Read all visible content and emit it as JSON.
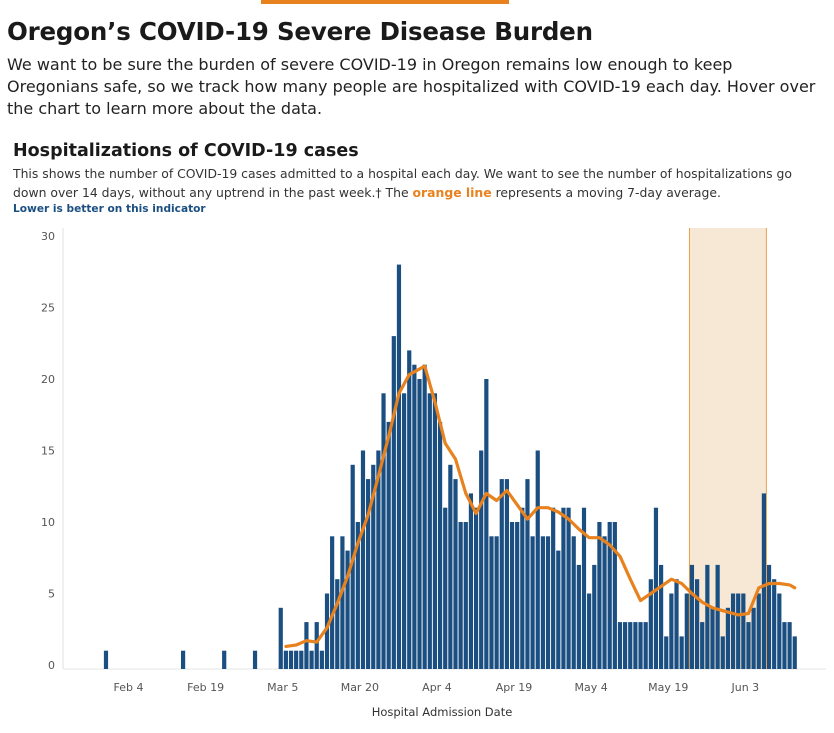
{
  "page": {
    "title": "Oregon’s COVID-19 Severe Disease Burden",
    "intro": "We want to be sure the burden of severe COVID-19 in Oregon remains low enough to keep Oregonians safe, so we track how many people are hospitalized with COVID-19 each day. Hover over the chart to learn more about the data."
  },
  "chart_header": {
    "title": "Hospitalizations of COVID-19 cases",
    "desc_part1": "This shows the number of COVID-19 cases admitted to a hospital each day. We want to see the number of hospitalizations go down over 14 days, without any uptrend in the past week.† The ",
    "desc_highlight": "orange line",
    "desc_part2": " represents a moving 7-day average.",
    "indicator": "Lower is better on this indicator"
  },
  "colors": {
    "bar": "#1b4f82",
    "line": "#e8821e",
    "shade": "#f6e8d5",
    "shade_border": "#e8a04b",
    "topbar": "#e8821e"
  },
  "chart_data": {
    "type": "bar",
    "xlabel": "Hospital Admission Date",
    "ylabel": "",
    "ylim": [
      0,
      30
    ],
    "yticks": [
      0,
      5,
      10,
      15,
      20,
      25,
      30
    ],
    "x_start": "2020-01-24",
    "x_ticks": [
      {
        "date": "2020-02-04",
        "label": "Feb 4"
      },
      {
        "date": "2020-02-19",
        "label": "Feb 19"
      },
      {
        "date": "2020-03-05",
        "label": "Mar 5"
      },
      {
        "date": "2020-03-20",
        "label": "Mar 20"
      },
      {
        "date": "2020-04-04",
        "label": "Apr 4"
      },
      {
        "date": "2020-04-19",
        "label": "Apr 19"
      },
      {
        "date": "2020-05-04",
        "label": "May 4"
      },
      {
        "date": "2020-05-19",
        "label": "May 19"
      },
      {
        "date": "2020-06-03",
        "label": "Jun 3"
      }
    ],
    "highlight_range": [
      "2020-05-24",
      "2020-06-06"
    ],
    "series": [
      {
        "kind": "bar",
        "points": [
          [
            "2020-01-31",
            1
          ],
          [
            "2020-02-15",
            1
          ],
          [
            "2020-02-23",
            1
          ],
          [
            "2020-02-29",
            1
          ],
          [
            "2020-03-05",
            4
          ],
          [
            "2020-03-06",
            1
          ],
          [
            "2020-03-07",
            1
          ],
          [
            "2020-03-08",
            1
          ],
          [
            "2020-03-09",
            1
          ],
          [
            "2020-03-10",
            3
          ],
          [
            "2020-03-11",
            1
          ],
          [
            "2020-03-12",
            3
          ],
          [
            "2020-03-13",
            1
          ],
          [
            "2020-03-14",
            5
          ],
          [
            "2020-03-15",
            9
          ],
          [
            "2020-03-16",
            6
          ],
          [
            "2020-03-17",
            9
          ],
          [
            "2020-03-18",
            8
          ],
          [
            "2020-03-19",
            14
          ],
          [
            "2020-03-20",
            10
          ],
          [
            "2020-03-21",
            15
          ],
          [
            "2020-03-22",
            13
          ],
          [
            "2020-03-23",
            14
          ],
          [
            "2020-03-24",
            15
          ],
          [
            "2020-03-25",
            19
          ],
          [
            "2020-03-26",
            17
          ],
          [
            "2020-03-27",
            23
          ],
          [
            "2020-03-28",
            28
          ],
          [
            "2020-03-29",
            19
          ],
          [
            "2020-03-30",
            22
          ],
          [
            "2020-03-31",
            21
          ],
          [
            "2020-04-01",
            20
          ],
          [
            "2020-04-02",
            21
          ],
          [
            "2020-04-03",
            19
          ],
          [
            "2020-04-04",
            19
          ],
          [
            "2020-04-05",
            17
          ],
          [
            "2020-04-06",
            11
          ],
          [
            "2020-04-07",
            14
          ],
          [
            "2020-04-08",
            13
          ],
          [
            "2020-04-09",
            10
          ],
          [
            "2020-04-10",
            10
          ],
          [
            "2020-04-11",
            12
          ],
          [
            "2020-04-12",
            11
          ],
          [
            "2020-04-13",
            15
          ],
          [
            "2020-04-14",
            20
          ],
          [
            "2020-04-15",
            9
          ],
          [
            "2020-04-16",
            9
          ],
          [
            "2020-04-17",
            13
          ],
          [
            "2020-04-18",
            13
          ],
          [
            "2020-04-19",
            10
          ],
          [
            "2020-04-20",
            10
          ],
          [
            "2020-04-21",
            11
          ],
          [
            "2020-04-22",
            13
          ],
          [
            "2020-04-23",
            9
          ],
          [
            "2020-04-24",
            15
          ],
          [
            "2020-04-25",
            9
          ],
          [
            "2020-04-26",
            9
          ],
          [
            "2020-04-27",
            11
          ],
          [
            "2020-04-28",
            8
          ],
          [
            "2020-04-29",
            11
          ],
          [
            "2020-04-30",
            11
          ],
          [
            "2020-05-01",
            9
          ],
          [
            "2020-05-02",
            7
          ],
          [
            "2020-05-03",
            11
          ],
          [
            "2020-05-04",
            5
          ],
          [
            "2020-05-05",
            7
          ],
          [
            "2020-05-06",
            10
          ],
          [
            "2020-05-07",
            9
          ],
          [
            "2020-05-08",
            10
          ],
          [
            "2020-05-09",
            10
          ],
          [
            "2020-05-10",
            3
          ],
          [
            "2020-05-11",
            3
          ],
          [
            "2020-05-12",
            3
          ],
          [
            "2020-05-13",
            3
          ],
          [
            "2020-05-14",
            3
          ],
          [
            "2020-05-15",
            3
          ],
          [
            "2020-05-16",
            6
          ],
          [
            "2020-05-17",
            11
          ],
          [
            "2020-05-18",
            7
          ],
          [
            "2020-05-19",
            2
          ],
          [
            "2020-05-20",
            5
          ],
          [
            "2020-05-21",
            6
          ],
          [
            "2020-05-22",
            2
          ],
          [
            "2020-05-23",
            5
          ],
          [
            "2020-05-24",
            7
          ],
          [
            "2020-05-25",
            6
          ],
          [
            "2020-05-26",
            3
          ],
          [
            "2020-05-27",
            7
          ],
          [
            "2020-05-28",
            4
          ],
          [
            "2020-05-29",
            7
          ],
          [
            "2020-05-30",
            2
          ],
          [
            "2020-05-31",
            4
          ],
          [
            "2020-06-01",
            5
          ],
          [
            "2020-06-02",
            5
          ],
          [
            "2020-06-03",
            5
          ],
          [
            "2020-06-04",
            3
          ],
          [
            "2020-06-05",
            4
          ],
          [
            "2020-06-06",
            5
          ],
          [
            "2020-06-07",
            12
          ],
          [
            "2020-06-08",
            7
          ],
          [
            "2020-06-09",
            6
          ],
          [
            "2020-06-10",
            5
          ],
          [
            "2020-06-11",
            3
          ],
          [
            "2020-06-12",
            3
          ],
          [
            "2020-06-13",
            2
          ]
        ]
      },
      {
        "kind": "line",
        "points": [
          [
            "2020-03-06",
            1.3
          ],
          [
            "2020-03-08",
            1.4
          ],
          [
            "2020-03-10",
            1.7
          ],
          [
            "2020-03-12",
            1.6
          ],
          [
            "2020-03-14",
            2.6
          ],
          [
            "2020-03-16",
            4.3
          ],
          [
            "2020-03-18",
            6.2
          ],
          [
            "2020-03-20",
            8.5
          ],
          [
            "2020-03-22",
            10.5
          ],
          [
            "2020-03-24",
            13.2
          ],
          [
            "2020-03-26",
            16.0
          ],
          [
            "2020-03-28",
            19.0
          ],
          [
            "2020-03-30",
            20.3
          ],
          [
            "2020-03-31",
            20.5
          ],
          [
            "2020-04-02",
            20.9
          ],
          [
            "2020-04-04",
            18.4
          ],
          [
            "2020-04-06",
            15.5
          ],
          [
            "2020-04-08",
            14.4
          ],
          [
            "2020-04-10",
            12.0
          ],
          [
            "2020-04-12",
            10.6
          ],
          [
            "2020-04-14",
            12.0
          ],
          [
            "2020-04-16",
            11.5
          ],
          [
            "2020-04-18",
            12.2
          ],
          [
            "2020-04-20",
            11.2
          ],
          [
            "2020-04-22",
            10.2
          ],
          [
            "2020-04-24",
            11.0
          ],
          [
            "2020-04-26",
            11.0
          ],
          [
            "2020-04-28",
            10.7
          ],
          [
            "2020-04-30",
            10.2
          ],
          [
            "2020-05-02",
            9.5
          ],
          [
            "2020-05-04",
            8.9
          ],
          [
            "2020-05-06",
            8.9
          ],
          [
            "2020-05-08",
            8.4
          ],
          [
            "2020-05-10",
            7.6
          ],
          [
            "2020-05-12",
            6.0
          ],
          [
            "2020-05-14",
            4.5
          ],
          [
            "2020-05-16",
            5.0
          ],
          [
            "2020-05-18",
            5.5
          ],
          [
            "2020-05-20",
            6.0
          ],
          [
            "2020-05-22",
            5.7
          ],
          [
            "2020-05-24",
            5.0
          ],
          [
            "2020-05-26",
            4.4
          ],
          [
            "2020-05-28",
            4.0
          ],
          [
            "2020-05-30",
            3.8
          ],
          [
            "2020-06-01",
            3.6
          ],
          [
            "2020-06-02",
            3.5
          ],
          [
            "2020-06-04",
            3.6
          ],
          [
            "2020-06-06",
            5.4
          ],
          [
            "2020-06-08",
            5.7
          ],
          [
            "2020-06-10",
            5.7
          ],
          [
            "2020-06-12",
            5.6
          ],
          [
            "2020-06-13",
            5.4
          ]
        ]
      }
    ]
  }
}
